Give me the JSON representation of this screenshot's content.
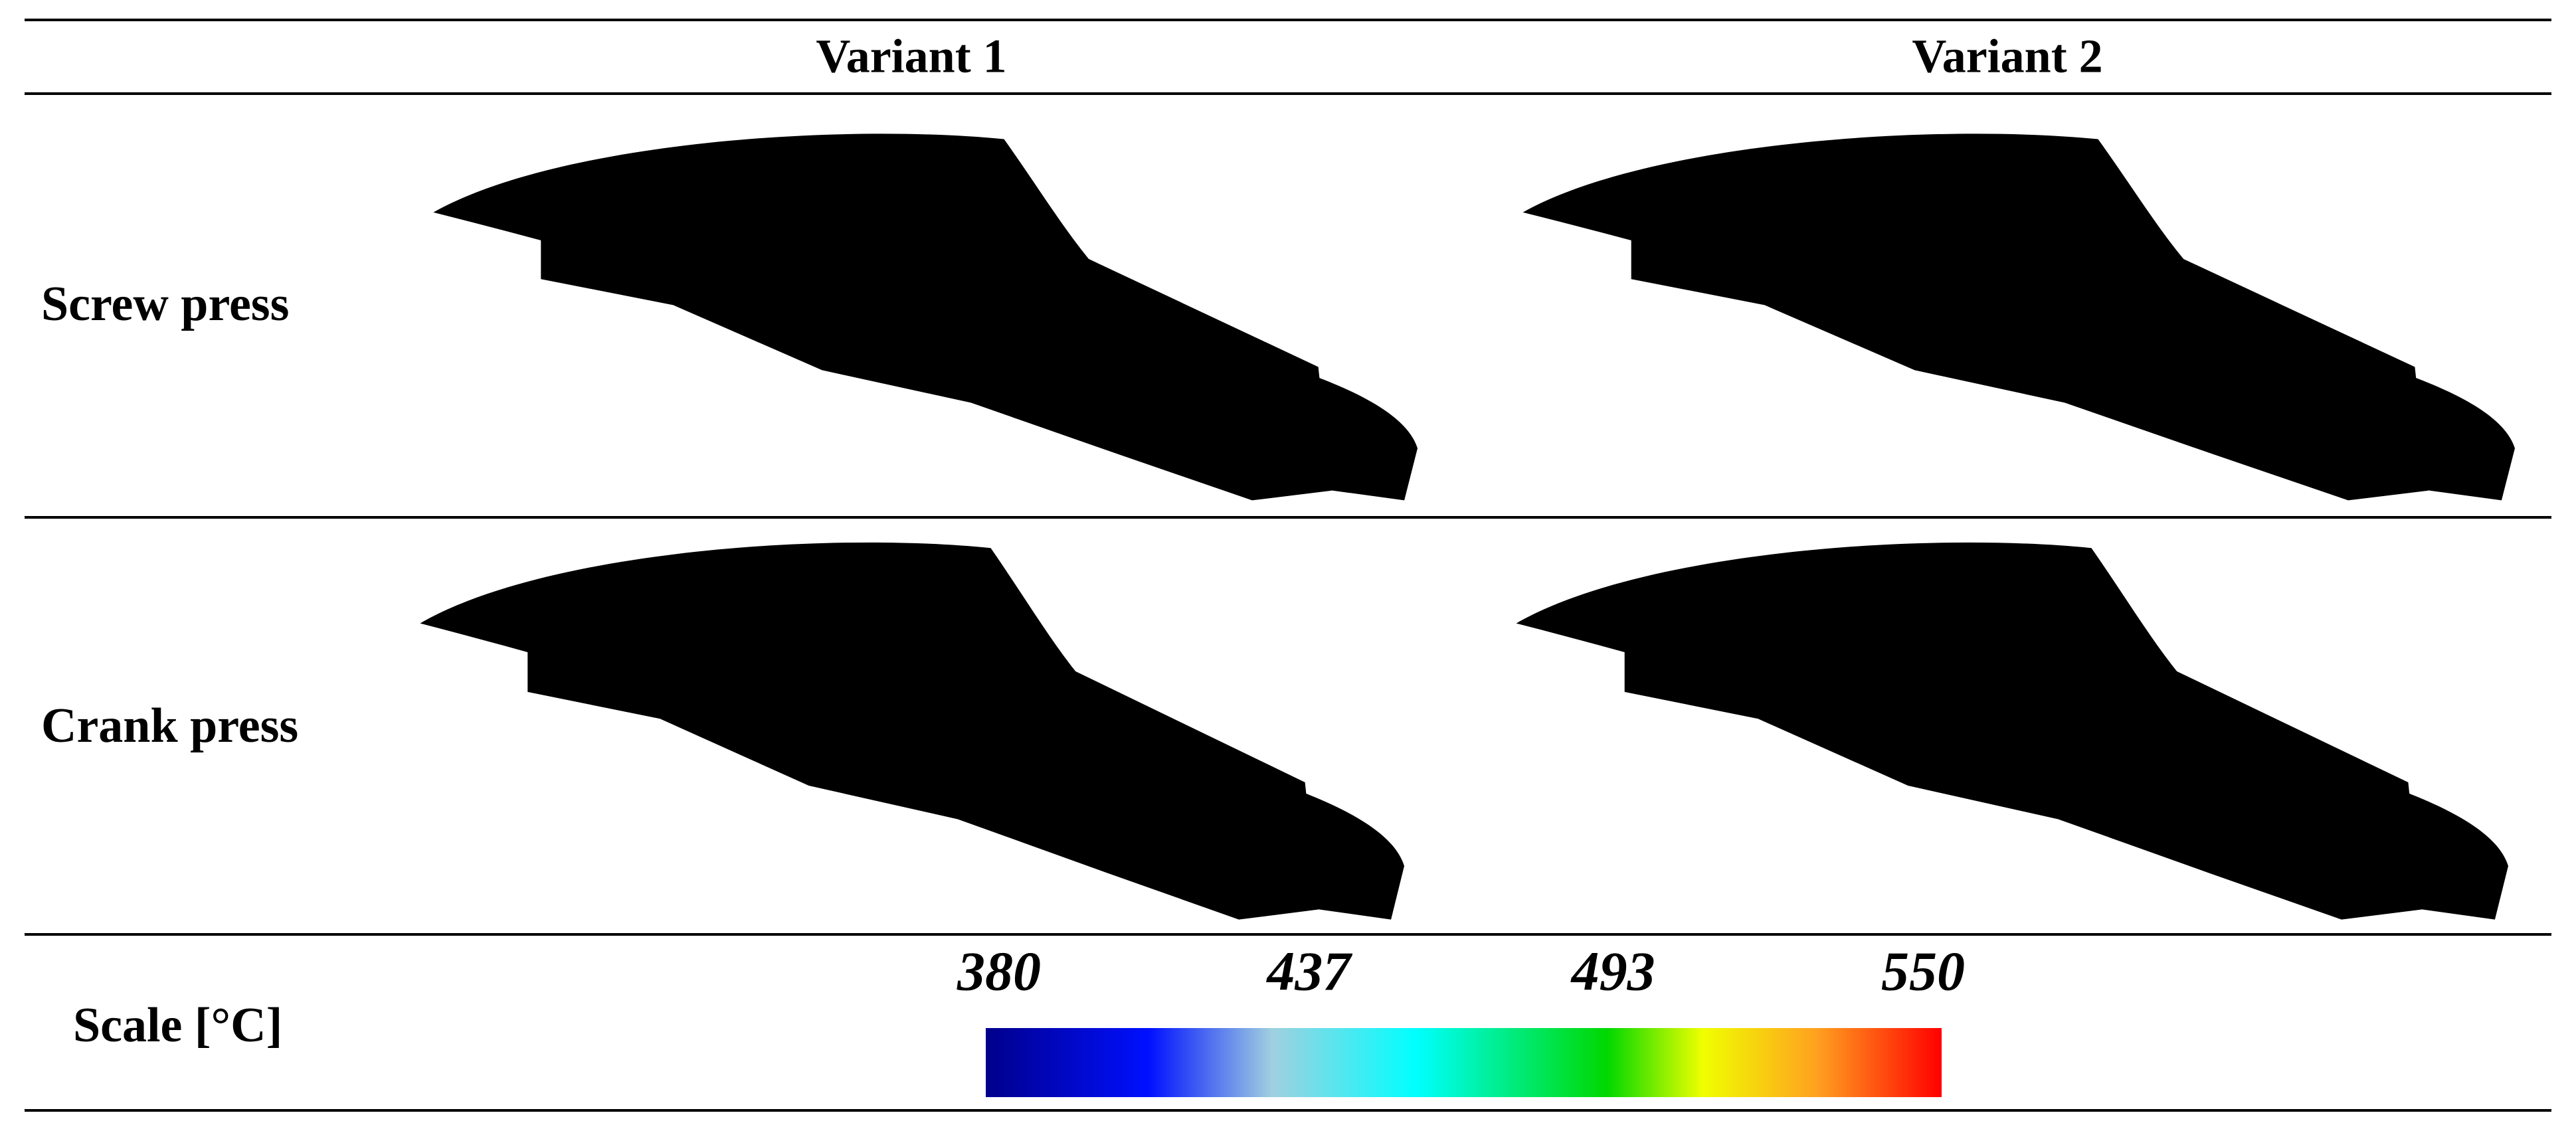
{
  "header": {
    "columns": [
      "Variant 1",
      "Variant 2"
    ]
  },
  "rows": [
    {
      "label": "Screw press"
    },
    {
      "label": "Crank press"
    }
  ],
  "scale": {
    "label": "Scale [°C]",
    "ticks": [
      380,
      437,
      493,
      550
    ]
  }
}
